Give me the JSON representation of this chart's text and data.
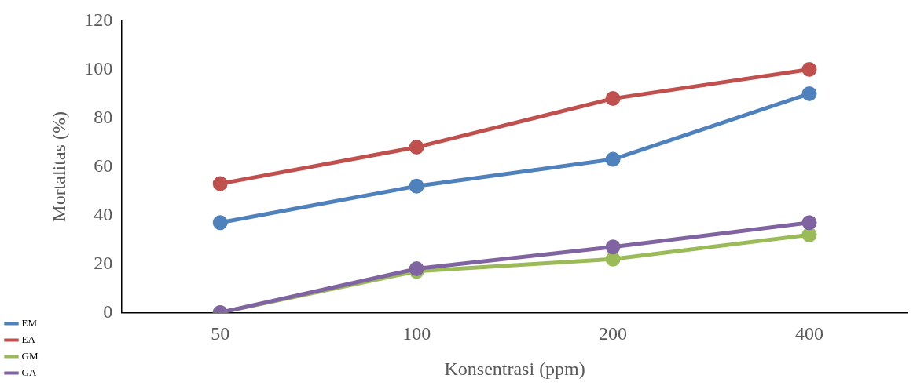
{
  "chart_data": {
    "type": "line",
    "xlabel": "Konsentrasi (ppm)",
    "ylabel": "Mortalitas (%)",
    "categories": [
      "50",
      "100",
      "200",
      "400"
    ],
    "series": [
      {
        "name": "EM",
        "color": "#4f81bd",
        "values": [
          37,
          52,
          63,
          90
        ]
      },
      {
        "name": "EA",
        "color": "#c0504d",
        "values": [
          53,
          68,
          88,
          100
        ]
      },
      {
        "name": "GM",
        "color": "#9bbb59",
        "values": [
          0,
          17,
          22,
          32
        ]
      },
      {
        "name": "GA",
        "color": "#8064a2",
        "values": [
          0,
          18,
          27,
          37
        ]
      }
    ],
    "ylim": [
      0,
      120
    ],
    "yticks": [
      0,
      20,
      40,
      60,
      80,
      100,
      120
    ],
    "grid": false,
    "legend": "bottom left",
    "marker": "circle",
    "line_style": "solid"
  }
}
